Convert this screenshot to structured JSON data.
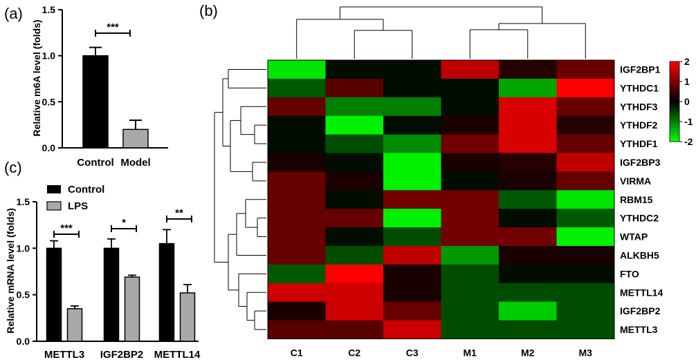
{
  "panel_labels": {
    "a": "(a)",
    "b": "(b)",
    "c": "(c)"
  },
  "chart_data": [
    {
      "id": "a",
      "type": "bar",
      "ylabel": "Relative m6A level (folds)",
      "ylim": [
        0,
        1.5
      ],
      "yticks": [
        "0.0",
        "0.5",
        "1.0",
        "1.5"
      ],
      "categories": [
        "Control",
        "Model"
      ],
      "values": [
        1.0,
        0.2
      ],
      "errors": [
        0.09,
        0.1
      ],
      "colors": [
        "#000000",
        "#a9a9a9"
      ],
      "significance": "***"
    },
    {
      "id": "b",
      "type": "heatmap",
      "columns": [
        "C1",
        "C2",
        "C3",
        "M1",
        "M2",
        "M3"
      ],
      "rows": [
        "IGF2BP1",
        "YTHDC1",
        "YTHDF3",
        "YTHDF2",
        "YTHDF1",
        "IGF2BP3",
        "VIRMA",
        "RBM15",
        "YTHDC2",
        "WTAP",
        "ALKBH5",
        "FTO",
        "METTL14",
        "IGF2BP2",
        "METTL3"
      ],
      "values": [
        [
          -1.8,
          -0.1,
          -0.1,
          1.5,
          0.3,
          0.8
        ],
        [
          -0.7,
          0.7,
          -0.1,
          -0.1,
          -1.3,
          2.0
        ],
        [
          0.8,
          -1.0,
          -1.0,
          -0.1,
          1.7,
          0.8
        ],
        [
          -0.1,
          -1.9,
          -0.1,
          0.2,
          1.7,
          0.3
        ],
        [
          -0.1,
          -0.6,
          -1.1,
          0.9,
          1.7,
          0.8
        ],
        [
          0.2,
          -0.1,
          -1.9,
          0.2,
          0.3,
          1.5
        ],
        [
          0.8,
          0.2,
          -1.9,
          -0.1,
          0.2,
          0.8
        ],
        [
          0.8,
          -0.1,
          0.9,
          0.9,
          -0.7,
          -1.8
        ],
        [
          0.8,
          0.8,
          -1.9,
          0.9,
          -0.1,
          -0.7
        ],
        [
          0.8,
          -0.1,
          -0.6,
          0.9,
          0.9,
          -1.9
        ],
        [
          0.8,
          -0.6,
          1.5,
          -1.2,
          0.2,
          0.2
        ],
        [
          -0.7,
          2.0,
          0.2,
          -0.6,
          -0.1,
          -0.1
        ],
        [
          1.6,
          1.6,
          0.2,
          -0.6,
          -0.6,
          -0.6
        ],
        [
          0.2,
          1.6,
          0.8,
          -0.6,
          -1.6,
          -0.6
        ],
        [
          0.7,
          0.7,
          1.6,
          -0.6,
          -0.6,
          -0.6
        ]
      ],
      "scale": {
        "min": -2,
        "max": 2,
        "ticks": [
          "2",
          "1",
          "0",
          "-1",
          "-2"
        ],
        "high_color": "#ff0000",
        "mid_color": "#000000",
        "low_color": "#00ff00"
      },
      "col_dendrogram_order": [
        "C1",
        "C2",
        "C3",
        "M1",
        "M2",
        "M3"
      ],
      "row_dendrogram": true
    },
    {
      "id": "c",
      "type": "bar",
      "ylabel": "Relative mRNA level (folds)",
      "ylim": [
        0,
        1.5
      ],
      "yticks": [
        "0.0",
        "0.5",
        "1.0",
        "1.5"
      ],
      "categories": [
        "METTL3",
        "IGF2BP2",
        "METTL14"
      ],
      "series": [
        {
          "name": "Control",
          "values": [
            1.0,
            1.0,
            1.05
          ],
          "errors": [
            0.08,
            0.1,
            0.15
          ],
          "color": "#000000"
        },
        {
          "name": "LPS",
          "values": [
            0.35,
            0.69,
            0.52
          ],
          "errors": [
            0.03,
            0.02,
            0.09
          ],
          "color": "#a9a9a9"
        }
      ],
      "significance": [
        "***",
        "*",
        "**"
      ],
      "legend_position": "top-left"
    }
  ]
}
